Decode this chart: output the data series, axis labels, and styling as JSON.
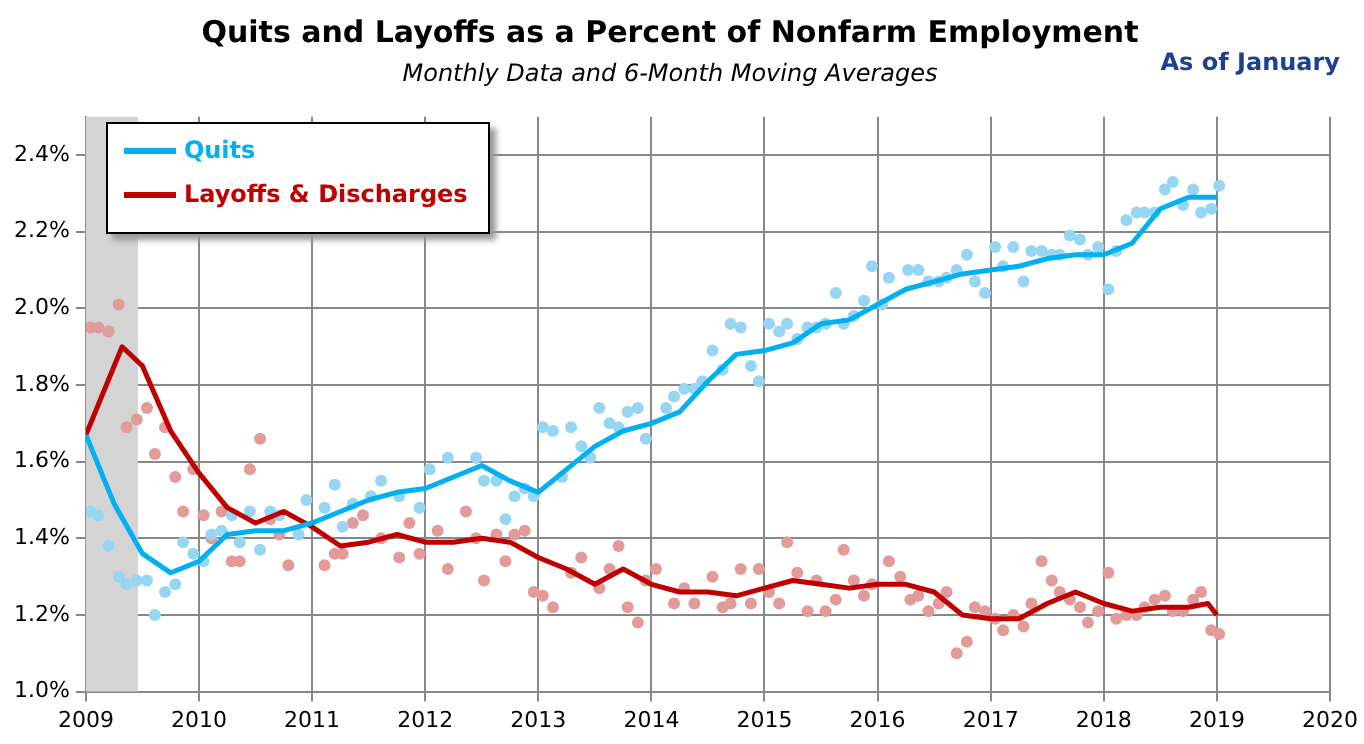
{
  "chart_data": {
    "type": "line",
    "title": "Quits and Layoffs as a Percent of Nonfarm Employment",
    "subtitle": "Monthly Data and 6-Month Moving Averages",
    "annotations": [
      "As of January"
    ],
    "xlim": [
      2009,
      2020
    ],
    "xticks": [
      2009,
      2010,
      2011,
      2012,
      2013,
      2014,
      2015,
      2016,
      2017,
      2018,
      2019,
      2020
    ],
    "ylim": [
      1.0,
      2.5
    ],
    "yticks": [
      {
        "value": 1.0,
        "label": "1.0%"
      },
      {
        "value": 1.2,
        "label": "1.2%"
      },
      {
        "value": 1.4,
        "label": "1.4%"
      },
      {
        "value": 1.6,
        "label": "1.6%"
      },
      {
        "value": 1.8,
        "label": "1.8%"
      },
      {
        "value": 2.0,
        "label": "2.0%"
      },
      {
        "value": 2.2,
        "label": "2.2%"
      },
      {
        "value": 2.4,
        "label": "2.4%"
      }
    ],
    "grid": true,
    "legend": "top left",
    "bands": [
      {
        "axis": "x",
        "from": 2009,
        "to": 2009.46,
        "color": "#d4d4d4"
      }
    ],
    "series": [
      {
        "type": "scatter",
        "marker": "circle",
        "color": "#96d6f2",
        "x": [
          2009.04,
          2009.11,
          2009.2,
          2009.29,
          2009.36,
          2009.45,
          2009.54,
          2009.61,
          2009.7,
          2009.79,
          2009.86,
          2009.95,
          2010.04,
          2010.11,
          2010.2,
          2010.29,
          2010.36,
          2010.45,
          2010.54,
          2010.63,
          2010.71,
          2010.88,
          2010.95,
          2011.11,
          2011.2,
          2011.27,
          2011.36,
          2011.52,
          2011.61,
          2011.77,
          2011.95,
          2012.04,
          2012.2,
          2012.45,
          2012.52,
          2012.63,
          2012.71,
          2012.79,
          2012.88,
          2012.96,
          2013.04,
          2013.13,
          2013.21,
          2013.29,
          2013.38,
          2013.46,
          2013.54,
          2013.63,
          2013.71,
          2013.79,
          2013.88,
          2013.95,
          2014.13,
          2014.2,
          2014.29,
          2014.38,
          2014.45,
          2014.54,
          2014.63,
          2014.7,
          2014.79,
          2014.88,
          2014.95,
          2015.04,
          2015.13,
          2015.2,
          2015.29,
          2015.38,
          2015.46,
          2015.54,
          2015.63,
          2015.7,
          2015.79,
          2015.88,
          2015.95,
          2016.04,
          2016.1,
          2016.27,
          2016.36,
          2016.45,
          2016.54,
          2016.61,
          2016.7,
          2016.79,
          2016.86,
          2016.95,
          2017.04,
          2017.11,
          2017.2,
          2017.29,
          2017.36,
          2017.45,
          2017.54,
          2017.61,
          2017.7,
          2017.79,
          2017.86,
          2017.95,
          2018.04,
          2018.11,
          2018.2,
          2018.29,
          2018.36,
          2018.45,
          2018.54,
          2018.61,
          2018.7,
          2018.79,
          2018.86,
          2018.95,
          2019.02
        ],
        "values": [
          1.47,
          1.46,
          1.38,
          1.3,
          1.28,
          1.29,
          1.29,
          1.2,
          1.26,
          1.28,
          1.39,
          1.36,
          1.34,
          1.41,
          1.42,
          1.46,
          1.39,
          1.47,
          1.37,
          1.47,
          1.46,
          1.41,
          1.5,
          1.48,
          1.54,
          1.43,
          1.49,
          1.51,
          1.55,
          1.51,
          1.48,
          1.58,
          1.61,
          1.61,
          1.55,
          1.55,
          1.45,
          1.51,
          1.53,
          1.51,
          1.69,
          1.68,
          1.56,
          1.69,
          1.64,
          1.61,
          1.74,
          1.7,
          1.69,
          1.73,
          1.74,
          1.66,
          1.74,
          1.77,
          1.79,
          1.79,
          1.81,
          1.89,
          1.84,
          1.96,
          1.95,
          1.85,
          1.81,
          1.96,
          1.94,
          1.96,
          1.92,
          1.95,
          1.95,
          1.96,
          2.04,
          1.96,
          1.98,
          2.02,
          2.11,
          2.01,
          2.08,
          2.1,
          2.1,
          2.07,
          2.07,
          2.08,
          2.1,
          2.14,
          2.07,
          2.04,
          2.16,
          2.11,
          2.16,
          2.07,
          2.15,
          2.15,
          2.14,
          2.14,
          2.19,
          2.18,
          2.14,
          2.16,
          2.05,
          2.15,
          2.23,
          2.25,
          2.25,
          2.25,
          2.31,
          2.33,
          2.27,
          2.31,
          2.25,
          2.26,
          2.32
        ]
      },
      {
        "type": "scatter",
        "marker": "circle",
        "color": "#e29a9a",
        "x": [
          2009.04,
          2009.11,
          2009.2,
          2009.29,
          2009.36,
          2009.45,
          2009.54,
          2009.61,
          2009.7,
          2009.79,
          2009.86,
          2009.95,
          2010.04,
          2010.11,
          2010.2,
          2010.29,
          2010.36,
          2010.45,
          2010.54,
          2010.63,
          2010.71,
          2010.79,
          2010.88,
          2011.11,
          2011.2,
          2011.27,
          2011.36,
          2011.45,
          2011.61,
          2011.77,
          2011.86,
          2011.95,
          2012.11,
          2012.2,
          2012.36,
          2012.45,
          2012.52,
          2012.63,
          2012.71,
          2012.79,
          2012.88,
          2012.96,
          2013.04,
          2013.13,
          2013.29,
          2013.38,
          2013.54,
          2013.63,
          2013.71,
          2013.79,
          2013.88,
          2013.95,
          2014.04,
          2014.2,
          2014.29,
          2014.38,
          2014.54,
          2014.63,
          2014.7,
          2014.79,
          2014.88,
          2014.95,
          2015.04,
          2015.13,
          2015.2,
          2015.29,
          2015.38,
          2015.46,
          2015.54,
          2015.63,
          2015.7,
          2015.79,
          2015.88,
          2015.95,
          2016.1,
          2016.2,
          2016.29,
          2016.36,
          2016.45,
          2016.54,
          2016.61,
          2016.7,
          2016.79,
          2016.86,
          2016.95,
          2017.04,
          2017.11,
          2017.2,
          2017.29,
          2017.36,
          2017.45,
          2017.54,
          2017.61,
          2017.7,
          2017.79,
          2017.86,
          2017.95,
          2018.04,
          2018.11,
          2018.2,
          2018.29,
          2018.36,
          2018.45,
          2018.54,
          2018.61,
          2018.7,
          2018.79,
          2018.86,
          2018.95,
          2019.02
        ],
        "values": [
          1.95,
          1.95,
          1.94,
          2.01,
          1.69,
          1.71,
          1.74,
          1.62,
          1.69,
          1.56,
          1.47,
          1.58,
          1.46,
          1.4,
          1.47,
          1.34,
          1.34,
          1.58,
          1.66,
          1.45,
          1.41,
          1.33,
          null,
          1.33,
          1.36,
          1.36,
          1.44,
          1.46,
          1.4,
          1.35,
          1.44,
          1.36,
          1.42,
          1.32,
          1.47,
          1.4,
          1.29,
          1.41,
          1.34,
          1.41,
          1.42,
          1.26,
          1.25,
          1.22,
          1.31,
          1.35,
          1.27,
          1.32,
          1.38,
          1.22,
          1.18,
          1.29,
          1.32,
          1.23,
          1.27,
          1.23,
          1.3,
          1.22,
          1.23,
          1.32,
          1.23,
          1.32,
          1.26,
          1.23,
          1.39,
          1.31,
          1.21,
          1.29,
          1.21,
          1.24,
          1.37,
          1.29,
          1.25,
          1.28,
          1.34,
          1.3,
          1.24,
          1.25,
          1.21,
          1.23,
          1.26,
          1.1,
          1.13,
          1.22,
          1.21,
          1.19,
          1.16,
          1.2,
          1.17,
          1.23,
          1.34,
          1.29,
          1.26,
          1.24,
          1.22,
          1.18,
          1.21,
          1.31,
          1.19,
          1.2,
          1.2,
          1.22,
          1.24,
          1.25,
          1.21,
          1.21,
          1.24,
          1.26,
          1.16,
          1.15
        ]
      },
      {
        "marker": "none",
        "name": "Quits",
        "color": "#00b0f0",
        "x": [
          2009,
          2009.25,
          2009.5,
          2009.75,
          2010,
          2010.25,
          2010.5,
          2010.75,
          2011,
          2011.25,
          2011.5,
          2011.75,
          2012,
          2012.25,
          2012.5,
          2012.75,
          2013,
          2013.25,
          2013.5,
          2013.75,
          2014,
          2014.25,
          2014.5,
          2014.75,
          2015,
          2015.25,
          2015.5,
          2015.75,
          2016,
          2016.25,
          2016.5,
          2016.75,
          2017,
          2017.25,
          2017.5,
          2017.75,
          2018,
          2018.25,
          2018.5,
          2018.75,
          2019
        ],
        "values": [
          1.67,
          1.49,
          1.36,
          1.31,
          1.34,
          1.41,
          1.42,
          1.42,
          1.44,
          1.47,
          1.5,
          1.52,
          1.53,
          1.56,
          1.59,
          1.55,
          1.52,
          1.58,
          1.64,
          1.68,
          1.7,
          1.73,
          1.81,
          1.88,
          1.89,
          1.91,
          1.96,
          1.97,
          2.01,
          2.05,
          2.07,
          2.09,
          2.1,
          2.11,
          2.13,
          2.14,
          2.14,
          2.17,
          2.26,
          2.29,
          2.29
        ]
      },
      {
        "marker": "none",
        "name": "Layoffs & Discharges",
        "color": "#c00000",
        "x": [
          2009,
          2009.32,
          2009.5,
          2009.75,
          2010,
          2010.25,
          2010.5,
          2010.75,
          2011,
          2011.25,
          2011.5,
          2011.75,
          2012,
          2012.25,
          2012.5,
          2012.75,
          2013,
          2013.25,
          2013.5,
          2013.75,
          2014,
          2014.25,
          2014.5,
          2014.75,
          2015,
          2015.25,
          2015.5,
          2015.75,
          2016,
          2016.25,
          2016.5,
          2016.75,
          2017,
          2017.25,
          2017.5,
          2017.75,
          2018,
          2018.25,
          2018.5,
          2018.75,
          2018.92,
          2019
        ],
        "values": [
          1.67,
          1.9,
          1.85,
          1.68,
          1.57,
          1.48,
          1.44,
          1.47,
          1.43,
          1.38,
          1.39,
          1.41,
          1.39,
          1.39,
          1.4,
          1.39,
          1.35,
          1.32,
          1.28,
          1.32,
          1.28,
          1.26,
          1.26,
          1.25,
          1.27,
          1.29,
          1.28,
          1.27,
          1.28,
          1.28,
          1.26,
          1.2,
          1.19,
          1.19,
          1.23,
          1.26,
          1.23,
          1.21,
          1.22,
          1.22,
          1.23,
          1.2
        ]
      }
    ]
  }
}
